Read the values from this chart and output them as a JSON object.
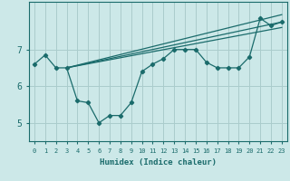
{
  "xlabel": "Humidex (Indice chaleur)",
  "background_color": "#cce8e8",
  "grid_color": "#aacccc",
  "line_color": "#1a6b6b",
  "x_ticks": [
    0,
    1,
    2,
    3,
    4,
    5,
    6,
    7,
    8,
    9,
    10,
    11,
    12,
    13,
    14,
    15,
    16,
    17,
    18,
    19,
    20,
    21,
    22,
    23
  ],
  "y_ticks": [
    5,
    6,
    7
  ],
  "ylim": [
    4.5,
    8.3
  ],
  "xlim": [
    -0.5,
    23.5
  ],
  "series1_x": [
    0,
    1,
    2,
    3,
    4,
    5,
    6,
    7,
    8,
    9,
    10,
    11,
    12,
    13,
    14,
    15,
    16,
    17,
    18,
    19,
    20,
    21,
    22,
    23
  ],
  "series1_y": [
    6.6,
    6.85,
    6.5,
    6.5,
    5.6,
    5.55,
    5.0,
    5.2,
    5.2,
    5.55,
    6.4,
    6.6,
    6.75,
    7.0,
    7.0,
    7.0,
    6.65,
    6.5,
    6.5,
    6.5,
    6.8,
    7.85,
    7.65,
    7.75
  ],
  "trend1_x": [
    3,
    23
  ],
  "trend1_y": [
    6.5,
    7.95
  ],
  "trend2_x": [
    3,
    23
  ],
  "trend2_y": [
    6.5,
    7.75
  ],
  "trend3_x": [
    3,
    23
  ],
  "trend3_y": [
    6.5,
    7.6
  ]
}
